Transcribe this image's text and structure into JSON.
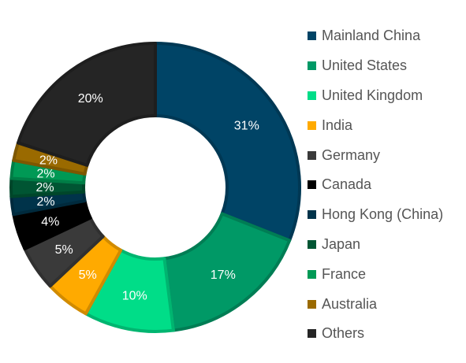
{
  "chart_data": {
    "type": "pie",
    "donut": true,
    "title": "",
    "legend_position": "right",
    "slices": [
      {
        "name": "Mainland China",
        "value": 31,
        "label": "31%",
        "color": "#004466"
      },
      {
        "name": "United States",
        "value": 17,
        "label": "17%",
        "color": "#009966"
      },
      {
        "name": "United Kingdom",
        "value": 10,
        "label": "10%",
        "color": "#00dd88"
      },
      {
        "name": "India",
        "value": 5,
        "label": "5%",
        "color": "#ffaa00"
      },
      {
        "name": "Germany",
        "value": 5,
        "label": "5%",
        "color": "#3a3a3a"
      },
      {
        "name": "Canada",
        "value": 4,
        "label": "4%",
        "color": "#000000"
      },
      {
        "name": "Hong Kong (China)",
        "value": 2,
        "label": "2%",
        "color": "#00334a"
      },
      {
        "name": "Japan",
        "value": 2,
        "label": "2%",
        "color": "#005533"
      },
      {
        "name": "France",
        "value": 2,
        "label": "2%",
        "color": "#009955"
      },
      {
        "name": "Australia",
        "value": 2,
        "label": "2%",
        "color": "#9a6a00"
      },
      {
        "name": "Others",
        "value": 20,
        "label": "20%",
        "color": "#252525"
      }
    ]
  }
}
